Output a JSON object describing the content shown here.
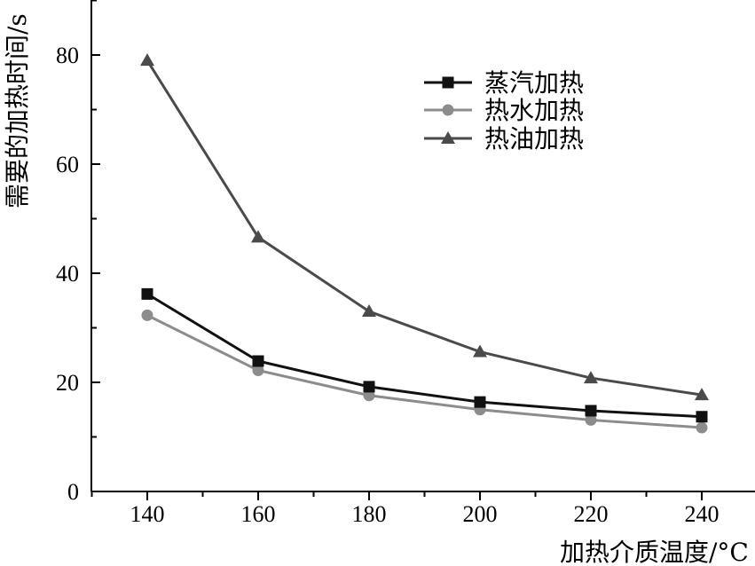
{
  "chart_data": {
    "type": "line",
    "x": [
      140,
      160,
      180,
      200,
      220,
      240
    ],
    "xlabel": "加热介质温度/°C",
    "ylabel": "需要的加热时间/s",
    "xlim": [
      130,
      250
    ],
    "ylim": [
      0,
      90
    ],
    "x_ticks": [
      140,
      160,
      180,
      200,
      220,
      240
    ],
    "y_ticks": [
      0,
      20,
      40,
      60,
      80
    ],
    "grid": false,
    "legend_position": "top-right",
    "series": [
      {
        "name": "蒸汽加热",
        "values": [
          36.2,
          23.9,
          19.2,
          16.4,
          14.8,
          13.7
        ],
        "color": "#111111",
        "marker": "square"
      },
      {
        "name": "热水加热",
        "values": [
          32.3,
          22.2,
          17.6,
          15.0,
          13.1,
          11.7
        ],
        "color": "#8c8c8c",
        "marker": "circle"
      },
      {
        "name": "热油加热",
        "values": [
          79.0,
          46.6,
          33.0,
          25.6,
          20.8,
          17.7
        ],
        "color": "#4a4a4a",
        "marker": "triangle"
      }
    ]
  }
}
